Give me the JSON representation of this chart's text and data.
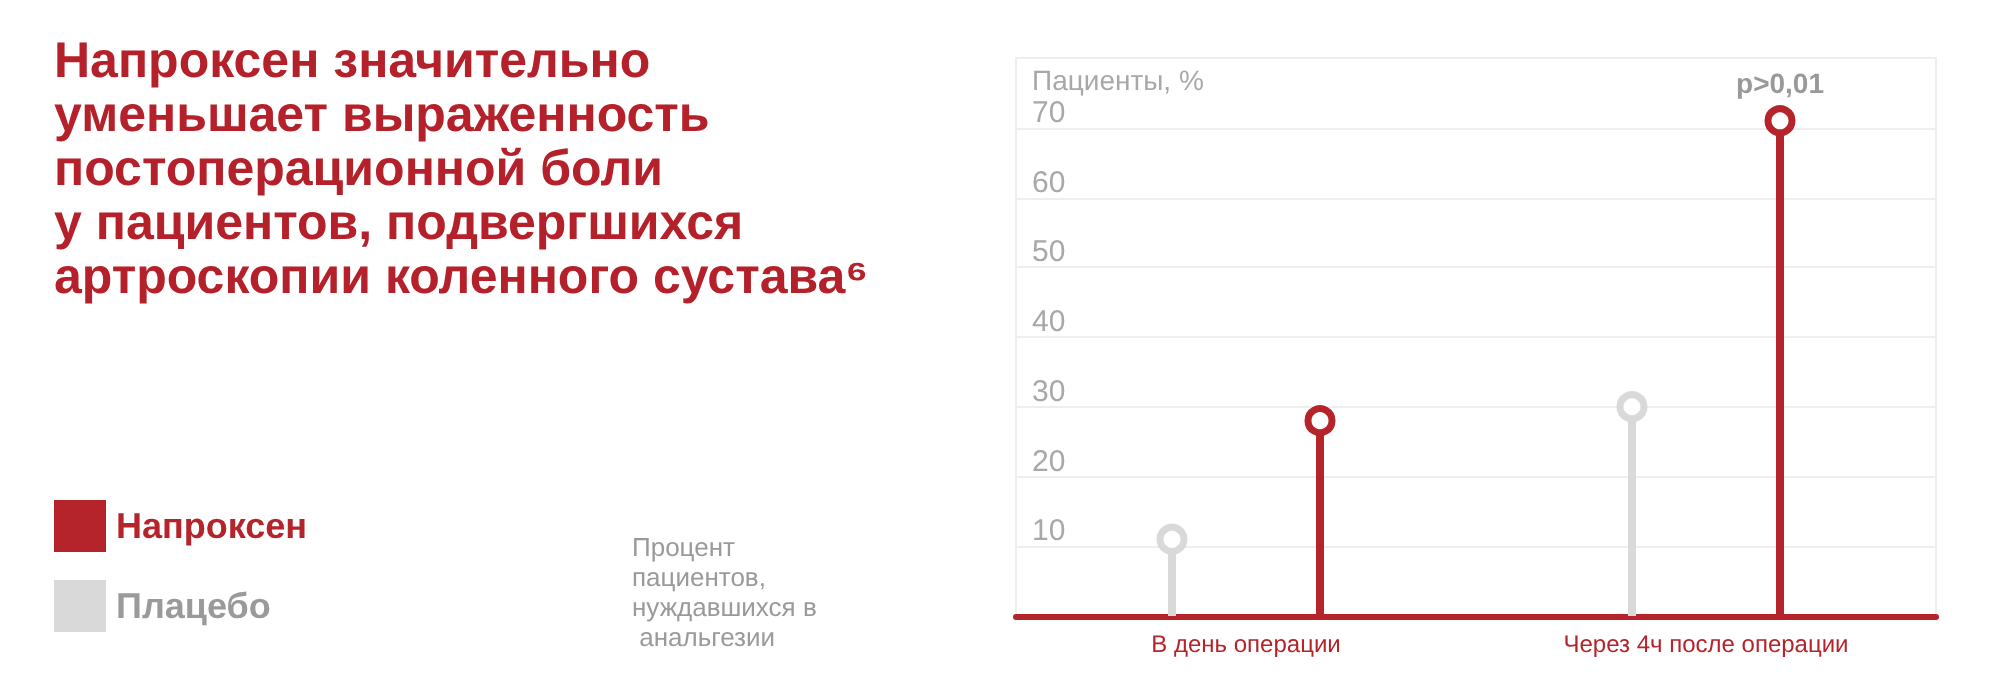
{
  "chart_data": {
    "type": "lollipop",
    "title": "Напроксен значительно\nуменьшает выраженность\nпостоперационной боли\nу пациентов, подвергшихся\nартроскопии коленного сустава⁶",
    "ylabel": "Пациенты, %",
    "categories": [
      "В день операции",
      "Через 4ч после операции"
    ],
    "series": [
      {
        "name": "Напроксен",
        "color": "#b5242b",
        "values": [
          28,
          71
        ]
      },
      {
        "name": "Плацебо",
        "color": "#d9d9d9",
        "values": [
          11,
          30
        ]
      }
    ],
    "ylim": [
      0,
      80
    ],
    "yticks": [
      10,
      20,
      30,
      40,
      50,
      60,
      70
    ],
    "grid": "y",
    "legend": "bottom left",
    "marker": "circle",
    "annotations": [
      "Процент пациентов, нуждавшихся в анальгезии",
      "p>0,01"
    ]
  }
}
